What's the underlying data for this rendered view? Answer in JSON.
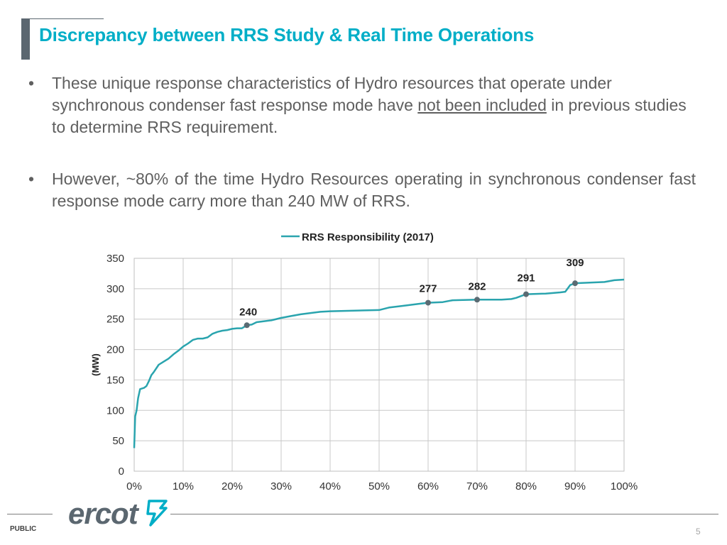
{
  "slide": {
    "title": "Discrepancy between RRS Study & Real Time Operations",
    "bullets": [
      {
        "marker": "•",
        "before": "These unique response characteristics of Hydro resources that operate under synchronous condenser fast response mode have ",
        "underlined": "not been included",
        "after": " in previous studies to determine RRS requirement."
      },
      {
        "marker": "•",
        "text": "However, ~80% of the time Hydro Resources operating in synchronous condenser fast response mode carry more than 240 MW of RRS."
      }
    ],
    "footer": {
      "classification": "PUBLIC",
      "page_number": "5",
      "logo_text": "ercot"
    },
    "colors": {
      "title": "#00aec7",
      "series": "#2aa4ae",
      "marker": "#5a6b73",
      "grid": "#c8c8c8"
    }
  },
  "chart_data": {
    "type": "line",
    "title": "",
    "xlabel": "",
    "ylabel": "(MW)",
    "xlim": [
      0,
      100
    ],
    "ylim": [
      0,
      350
    ],
    "x_ticks": [
      0,
      10,
      20,
      30,
      40,
      50,
      60,
      70,
      80,
      90,
      100
    ],
    "x_tick_labels": [
      "0%",
      "10%",
      "20%",
      "30%",
      "40%",
      "50%",
      "60%",
      "70%",
      "80%",
      "90%",
      "100%"
    ],
    "y_ticks": [
      0,
      50,
      100,
      150,
      200,
      250,
      300,
      350
    ],
    "y_tick_labels": [
      "0",
      "50",
      "100",
      "150",
      "200",
      "250",
      "300",
      "350"
    ],
    "grid": true,
    "legend_position": "top-center",
    "series": [
      {
        "name": "RRS Responsibility (2017)",
        "color": "#2aa4ae",
        "x": [
          0,
          0.2,
          0.5,
          0.8,
          1.2,
          2,
          2.5,
          3,
          3.5,
          4,
          5,
          6,
          7,
          8,
          9,
          10,
          11,
          12,
          13,
          14,
          15,
          16,
          17,
          18,
          19,
          20,
          21,
          22,
          23,
          24,
          25,
          26,
          28,
          30,
          32,
          34,
          36,
          38,
          40,
          45,
          50,
          52,
          55,
          58,
          60,
          63,
          65,
          70,
          75,
          77,
          78,
          80,
          84,
          87,
          88,
          89,
          90,
          93,
          96,
          98,
          100
        ],
        "y": [
          38,
          90,
          100,
          120,
          135,
          137,
          140,
          148,
          158,
          163,
          175,
          180,
          185,
          192,
          198,
          205,
          210,
          216,
          218,
          218,
          220,
          226,
          229,
          231,
          232,
          234,
          235,
          235,
          240,
          241,
          245,
          246,
          248,
          252,
          255,
          258,
          260,
          262,
          263,
          264,
          265,
          269,
          272,
          275,
          277,
          278,
          281,
          282,
          282,
          283,
          285,
          291,
          292,
          294,
          295,
          306,
          309,
          310,
          311,
          314,
          315
        ]
      }
    ],
    "annotations": [
      {
        "x": 23,
        "y": 240,
        "label": "240"
      },
      {
        "x": 60,
        "y": 277,
        "label": "277"
      },
      {
        "x": 70,
        "y": 282,
        "label": "282"
      },
      {
        "x": 80,
        "y": 291,
        "label": "291"
      },
      {
        "x": 90,
        "y": 309,
        "label": "309"
      }
    ]
  }
}
